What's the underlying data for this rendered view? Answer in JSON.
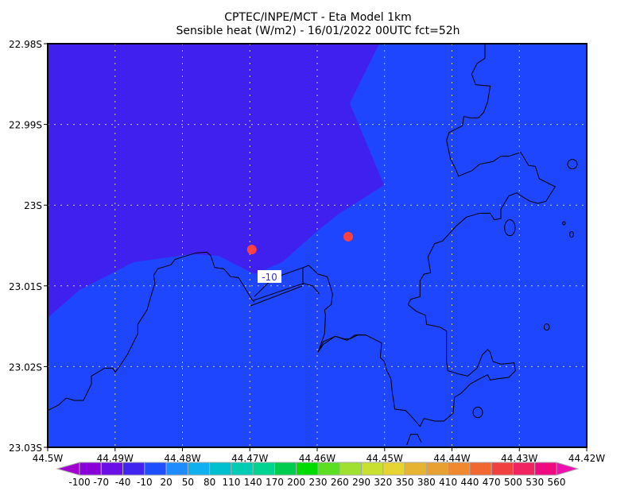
{
  "chart_data": {
    "type": "heatmap",
    "title_lines": [
      "CPTEC/INPE/MCT -  Eta Model 1km",
      "Sensible heat (W/m2) - 16/01/2022 00UTC fct=52h"
    ],
    "x_ticks": [
      "44.5W",
      "44.49W",
      "44.48W",
      "44.47W",
      "44.46W",
      "44.45W",
      "44.44W",
      "44.43W",
      "44.42W"
    ],
    "y_ticks": [
      "22.98S",
      "22.99S",
      "23S",
      "23.01S",
      "23.02S",
      "23.03S"
    ],
    "xlim": [
      -44.5,
      -44.42
    ],
    "ylim": [
      -23.03,
      -22.98
    ],
    "grid": true,
    "contour_label": "-10",
    "field_colors": {
      "below_-10": "#4020ee",
      "-10_to_20": "#1e46ff"
    },
    "markers_color": "#ff4040",
    "markers": [
      {
        "lon": -44.4697,
        "lat": -23.0055
      },
      {
        "lon": -44.4554,
        "lat": -23.0039
      }
    ],
    "colorbar": {
      "labels": [
        "-100",
        "-70",
        "-40",
        "-10",
        "20",
        "50",
        "80",
        "110",
        "140",
        "170",
        "200",
        "230",
        "260",
        "290",
        "320",
        "350",
        "380",
        "410",
        "440",
        "470",
        "500",
        "530",
        "560"
      ],
      "low_color": "#a000d0",
      "high_color": "#f010b0",
      "colors": [
        "#8a00d8",
        "#6a10e6",
        "#4024f0",
        "#1e50ff",
        "#1e8cff",
        "#10b0f0",
        "#00c0d0",
        "#00ccb4",
        "#00d490",
        "#00cc50",
        "#00dc00",
        "#5ae020",
        "#a0e030",
        "#c8e030",
        "#e6d430",
        "#e6b430",
        "#e8a030",
        "#f08830",
        "#f06830",
        "#f04040",
        "#f02460",
        "#f00a80"
      ]
    }
  }
}
